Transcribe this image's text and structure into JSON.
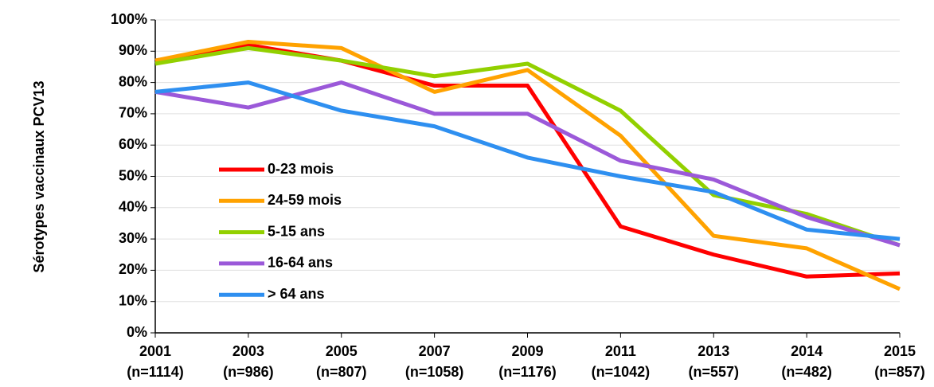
{
  "chart_data": {
    "type": "line",
    "y_label": "Sérotypes vaccinaux PCV13",
    "categories": [
      [
        "2001",
        "(n=1114)"
      ],
      [
        "2003",
        "(n=986)"
      ],
      [
        "2005",
        "(n=807)"
      ],
      [
        "2007",
        "(n=1058)"
      ],
      [
        "2009",
        "(n=1176)"
      ],
      [
        "2011",
        "(n=1042)"
      ],
      [
        "2013",
        "(n=557)"
      ],
      [
        "2014",
        "(n=482)"
      ],
      [
        "2015",
        "(n=857)"
      ]
    ],
    "series": [
      {
        "name": "0-23 mois",
        "color": "#ff0000",
        "values": [
          87,
          92,
          87,
          79,
          79,
          34,
          25,
          18,
          19
        ]
      },
      {
        "name": "24-59 mois",
        "color": "#ffa200",
        "values": [
          87,
          93,
          91,
          77,
          84,
          63,
          31,
          27,
          14
        ]
      },
      {
        "name": "5-15 ans",
        "color": "#92d000",
        "values": [
          86,
          91,
          87,
          82,
          86,
          71,
          44,
          38,
          28
        ]
      },
      {
        "name": "16-64 ans",
        "color": "#9b59d9",
        "values": [
          77,
          72,
          80,
          70,
          70,
          55,
          49,
          37,
          28
        ]
      },
      {
        "name": "> 64 ans",
        "color": "#2e8ff0",
        "values": [
          77,
          80,
          71,
          66,
          56,
          50,
          45,
          33,
          30
        ]
      }
    ],
    "ylim": [
      0,
      100
    ],
    "yticks": [
      {
        "value": 0,
        "label": "0%"
      },
      {
        "value": 10,
        "label": "10%"
      },
      {
        "value": 20,
        "label": "20%"
      },
      {
        "value": 30,
        "label": "30%"
      },
      {
        "value": 40,
        "label": "40%"
      },
      {
        "value": 50,
        "label": "50%"
      },
      {
        "value": 60,
        "label": "60%"
      },
      {
        "value": 70,
        "label": "70%"
      },
      {
        "value": 80,
        "label": "80%"
      },
      {
        "value": 90,
        "label": "90%"
      },
      {
        "value": 100,
        "label": "100%"
      }
    ],
    "grid": true
  }
}
